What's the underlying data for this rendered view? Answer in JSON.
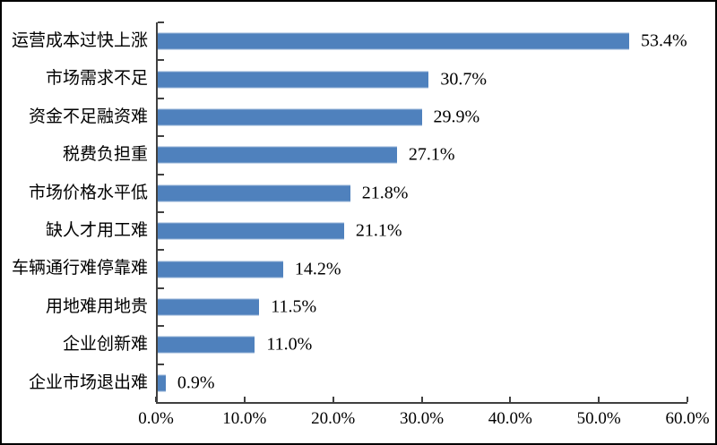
{
  "chart_data": {
    "type": "bar",
    "orientation": "horizontal",
    "title": "",
    "xlabel": "",
    "ylabel": "",
    "grid": false,
    "legend": false,
    "xlim": [
      0,
      60
    ],
    "x_tick_step": 10,
    "x_tick_labels": [
      "0.0%",
      "10.0%",
      "20.0%",
      "30.0%",
      "40.0%",
      "50.0%",
      "60.0%"
    ],
    "categories": [
      "运营成本过快上涨",
      "市场需求不足",
      "资金不足融资难",
      "税费负担重",
      "市场价格水平低",
      "缺人才用工难",
      "车辆通行难停靠难",
      "用地难用地贵",
      "企业创新难",
      "企业市场退出难"
    ],
    "values": [
      53.4,
      30.7,
      29.9,
      27.1,
      21.8,
      21.1,
      14.2,
      11.5,
      11.0,
      0.9
    ],
    "value_labels": [
      "53.4%",
      "30.7%",
      "29.9%",
      "27.1%",
      "21.8%",
      "21.1%",
      "14.2%",
      "11.5%",
      "11.0%",
      "0.9%"
    ],
    "colors": {
      "bar_fill": "#4F81BD",
      "bar_border": "#95B3D7",
      "axis_line": "#404040",
      "text": "#000000",
      "background": "#FFFFFF",
      "frame_border": "#000000"
    }
  }
}
